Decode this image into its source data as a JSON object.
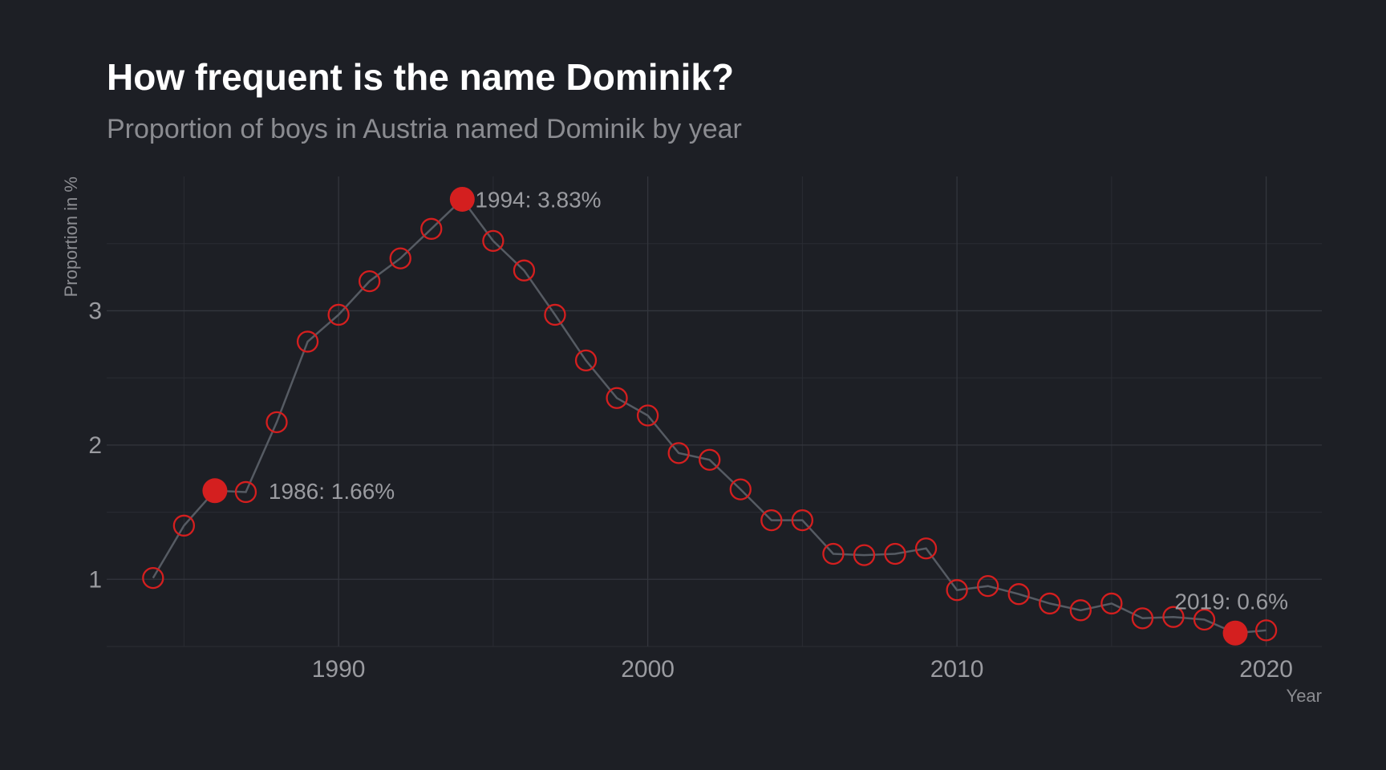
{
  "colors": {
    "background": "#1d1f25",
    "title": "#ffffff",
    "text": "#8b8c91",
    "line": "#565b63",
    "accent": "#d41f1f",
    "grid_major": "#33363d",
    "grid_minor": "#2a2c33"
  },
  "chart_data": {
    "type": "line",
    "title": "How frequent is the name Dominik?",
    "subtitle": "Proportion of boys in Austria named Dominik by year",
    "xlabel": "Year",
    "ylabel": "Proportion in %",
    "xlim": [
      1982.5,
      2021.8
    ],
    "ylim": [
      0.5,
      4.0
    ],
    "x_ticks": [
      1990,
      2000,
      2010,
      2020
    ],
    "y_ticks": [
      1,
      2,
      3
    ],
    "grid": true,
    "legend": "none",
    "series": [
      {
        "x": [
          1984,
          1985,
          1986,
          1987,
          1988,
          1989,
          1990,
          1991,
          1992,
          1993,
          1994,
          1995,
          1996,
          1997,
          1998,
          1999,
          2000,
          2001,
          2002,
          2003,
          2004,
          2005,
          2006,
          2007,
          2008,
          2009,
          2010,
          2011,
          2012,
          2013,
          2014,
          2015,
          2016,
          2017,
          2018,
          2019,
          2020
        ],
        "y": [
          1.01,
          1.4,
          1.66,
          1.65,
          2.17,
          2.77,
          2.97,
          3.22,
          3.39,
          3.61,
          3.83,
          3.52,
          3.3,
          2.97,
          2.63,
          2.35,
          2.22,
          1.94,
          1.89,
          1.67,
          1.44,
          1.44,
          1.19,
          1.18,
          1.19,
          1.23,
          0.92,
          0.95,
          0.89,
          0.82,
          0.77,
          0.82,
          0.71,
          0.72,
          0.7,
          0.6,
          0.62
        ]
      }
    ],
    "highlights": [
      {
        "x": 1986,
        "y": 1.66,
        "label": "1986: 1.66%"
      },
      {
        "x": 1994,
        "y": 3.83,
        "label": "1994: 3.83%"
      },
      {
        "x": 2019,
        "y": 0.6,
        "label": "2019: 0.6%"
      }
    ]
  }
}
